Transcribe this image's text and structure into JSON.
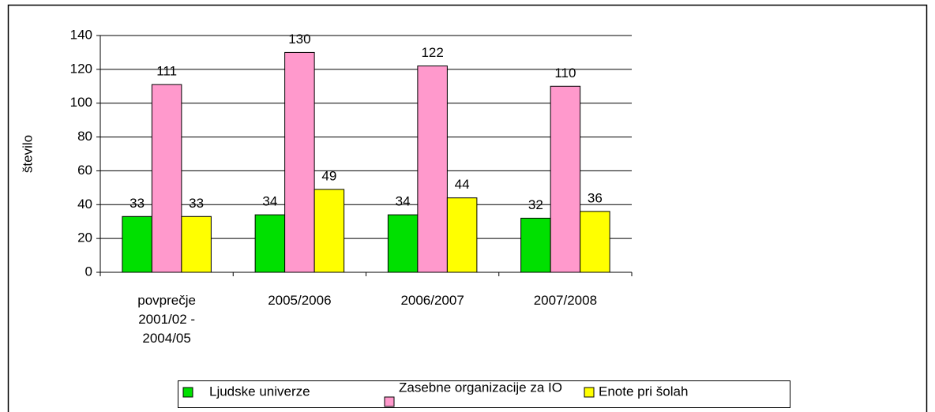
{
  "chart_data": {
    "type": "bar",
    "y_label": "število",
    "categories": [
      "povprečje 2001/02 - 2004/05",
      "2005/2006",
      "2006/2007",
      "2007/2008"
    ],
    "series": [
      {
        "name": "Ljudske univerze",
        "color": "#00e000",
        "values": [
          33,
          34,
          34,
          32
        ]
      },
      {
        "name": "Zasebne organizacije za IO",
        "color": "#ff99cc",
        "values": [
          111,
          130,
          122,
          110
        ]
      },
      {
        "name": "Enote pri šolah",
        "color": "#ffff00",
        "values": [
          33,
          49,
          44,
          36
        ]
      }
    ],
    "ylim": [
      0,
      140
    ],
    "yticks": [
      0,
      20,
      40,
      60,
      80,
      100,
      120,
      140
    ],
    "grid": true,
    "legend": "bottom"
  }
}
